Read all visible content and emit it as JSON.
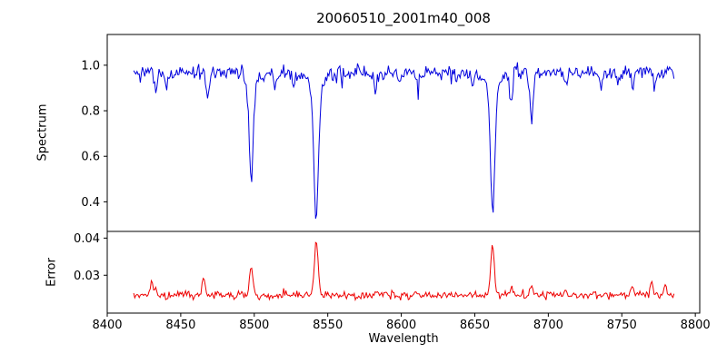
{
  "chart_data": {
    "type": "line",
    "title": "20060510_2001m40_008",
    "xlabel": "Wavelength",
    "ylabel_top": "Spectrum",
    "ylabel_bottom": "Error",
    "grid": false,
    "legend": false,
    "xlim": [
      8400,
      8803
    ],
    "top_ylim": [
      0.27,
      1.135
    ],
    "bottom_ylim": [
      0.0198,
      0.0418
    ],
    "x_ticks": [
      {
        "v": 8400,
        "label": "8400"
      },
      {
        "v": 8450,
        "label": "8450"
      },
      {
        "v": 8500,
        "label": "8500"
      },
      {
        "v": 8550,
        "label": "8550"
      },
      {
        "v": 8600,
        "label": "8600"
      },
      {
        "v": 8650,
        "label": "8650"
      },
      {
        "v": 8700,
        "label": "8700"
      },
      {
        "v": 8750,
        "label": "8750"
      },
      {
        "v": 8800,
        "label": "8800"
      }
    ],
    "top_y_ticks": [
      {
        "v": 1.0,
        "label": "1.0"
      },
      {
        "v": 0.8,
        "label": "0.8"
      },
      {
        "v": 0.6,
        "label": "0.6"
      },
      {
        "v": 0.4,
        "label": "0.4"
      }
    ],
    "bottom_y_ticks": [
      {
        "v": 0.04,
        "label": "0.04"
      },
      {
        "v": 0.03,
        "label": "0.03"
      }
    ],
    "sampling": {
      "start": 8418,
      "end": 8786,
      "step": 0.75,
      "seed": 42
    },
    "series": [
      {
        "name": "spectrum",
        "color": "#0000dd",
        "continuum": 0.968,
        "noise_sigma": 0.016,
        "absorption_lines": [
          {
            "center": 8498.0,
            "depth": 0.41,
            "sigma": 1.2
          },
          {
            "center": 8498.0,
            "depth": 0.08,
            "sigma": 3.5
          },
          {
            "center": 8542.1,
            "depth": 0.57,
            "sigma": 1.5
          },
          {
            "center": 8542.1,
            "depth": 0.08,
            "sigma": 5.0
          },
          {
            "center": 8662.1,
            "depth": 0.53,
            "sigma": 1.4
          },
          {
            "center": 8662.1,
            "depth": 0.08,
            "sigma": 4.5
          },
          {
            "center": 8433.0,
            "depth": 0.1,
            "sigma": 1.0
          },
          {
            "center": 8440.5,
            "depth": 0.07,
            "sigma": 0.9
          },
          {
            "center": 8468.4,
            "depth": 0.11,
            "sigma": 1.0
          },
          {
            "center": 8514.1,
            "depth": 0.08,
            "sigma": 0.9
          },
          {
            "center": 8526.7,
            "depth": 0.06,
            "sigma": 0.9
          },
          {
            "center": 8582.3,
            "depth": 0.07,
            "sigma": 0.9
          },
          {
            "center": 8598.8,
            "depth": 0.06,
            "sigma": 0.9
          },
          {
            "center": 8611.0,
            "depth": 0.05,
            "sigma": 0.9
          },
          {
            "center": 8648.5,
            "depth": 0.06,
            "sigma": 0.9
          },
          {
            "center": 8674.7,
            "depth": 0.13,
            "sigma": 1.0
          },
          {
            "center": 8688.6,
            "depth": 0.2,
            "sigma": 1.1
          },
          {
            "center": 8712.2,
            "depth": 0.07,
            "sigma": 0.9
          },
          {
            "center": 8736.0,
            "depth": 0.07,
            "sigma": 0.9
          },
          {
            "center": 8747.3,
            "depth": 0.06,
            "sigma": 0.9
          },
          {
            "center": 8757.2,
            "depth": 0.07,
            "sigma": 0.9
          },
          {
            "center": 8772.0,
            "depth": 0.06,
            "sigma": 0.9
          }
        ]
      },
      {
        "name": "error",
        "color": "#ee0000",
        "baseline": 0.0243,
        "noise_sigma": 0.0005,
        "noise_skew": 0.0004,
        "peaks": [
          {
            "center": 8430.0,
            "height": 0.0042,
            "sigma": 1.0
          },
          {
            "center": 8465.5,
            "height": 0.005,
            "sigma": 1.0
          },
          {
            "center": 8498.0,
            "height": 0.0075,
            "sigma": 1.1
          },
          {
            "center": 8542.1,
            "height": 0.015,
            "sigma": 1.2
          },
          {
            "center": 8662.1,
            "height": 0.014,
            "sigma": 1.2
          },
          {
            "center": 8674.7,
            "height": 0.0018,
            "sigma": 1.0
          },
          {
            "center": 8688.6,
            "height": 0.0028,
            "sigma": 1.0
          },
          {
            "center": 8433.0,
            "height": 0.0015,
            "sigma": 0.9
          },
          {
            "center": 8521.0,
            "height": 0.0015,
            "sigma": 0.9
          },
          {
            "center": 8583.0,
            "height": 0.0015,
            "sigma": 0.9
          },
          {
            "center": 8712.0,
            "height": 0.0014,
            "sigma": 0.9
          },
          {
            "center": 8757.0,
            "height": 0.0026,
            "sigma": 1.0
          },
          {
            "center": 8770.5,
            "height": 0.003,
            "sigma": 1.0
          },
          {
            "center": 8779.5,
            "height": 0.0026,
            "sigma": 1.0
          }
        ]
      }
    ]
  }
}
